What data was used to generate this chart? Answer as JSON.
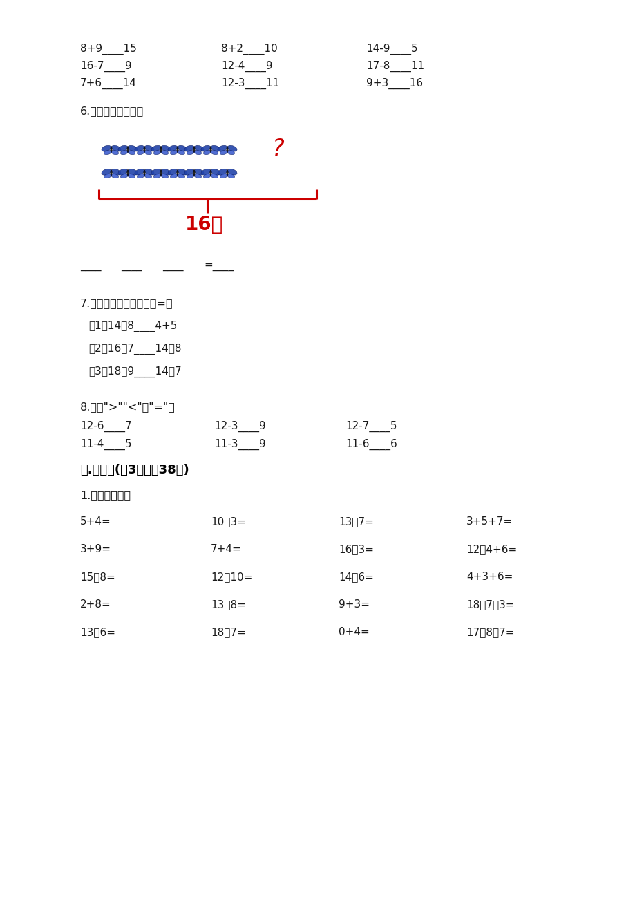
{
  "bg_color": "#ffffff",
  "text_color": "#1a1a1a",
  "red_color": "#cc0000",
  "bold_color": "#000000",
  "section5_rows": [
    [
      "8+9____15",
      "8+2____10",
      "14-9____5"
    ],
    [
      "16-7____9",
      "12-4____9",
      "17-8____11"
    ],
    [
      "7+6____14",
      "12-3____11",
      "9+3____16"
    ]
  ],
  "section6_title": "6.看一看，填一填。",
  "section6_brace_label": "16个",
  "section7_title": "7.在横线上填上＞、＜或=。",
  "section7_items": [
    "（1）14－8____4+5",
    "（2）16－7____14－8",
    "（3）18－9____14－7"
  ],
  "section8_title": "8.填上\">\"\"<\"或\"=\"。",
  "section8_row1": [
    "12-6____7",
    "12-3____9",
    "12-7____5"
  ],
  "section8_row2": [
    "11-4____5",
    "11-3____9",
    "11-6____6"
  ],
  "section4_title": "四.计算题(共3题，共38分)",
  "section4_sub": "1.直接写得数。",
  "calc_rows": [
    [
      "5+4=",
      "10－3=",
      "13－7=",
      "3+5+7="
    ],
    [
      "3+9=",
      "7+4=",
      "16－3=",
      "12－4+6="
    ],
    [
      "15－8=",
      "12－10=",
      "14－6=",
      "4+3+6="
    ],
    [
      "2+8=",
      "13－8=",
      "9+3=",
      "18－7－3="
    ],
    [
      "13－6=",
      "18－7=",
      "0+4=",
      "17－8－7="
    ]
  ]
}
